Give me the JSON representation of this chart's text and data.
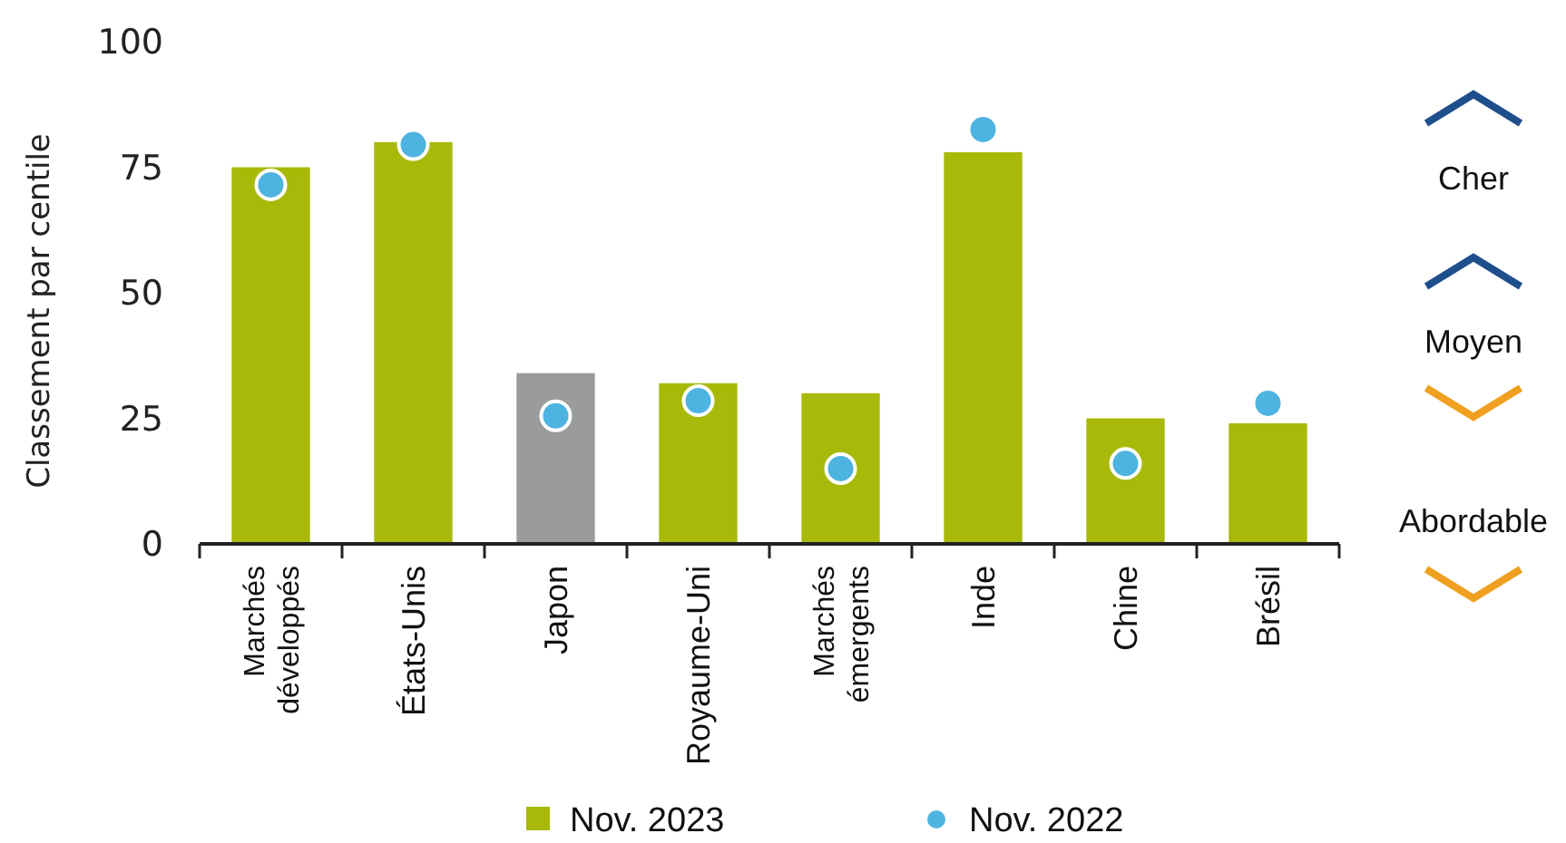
{
  "chart_data": {
    "type": "bar",
    "ylabel": "Classement par centile",
    "categories": [
      "Marchés développés",
      "États-Unis",
      "Japon",
      "Royaume-Uni",
      "Marchés émergents",
      "Inde",
      "Chine",
      "Brésil"
    ],
    "series": [
      {
        "name": "Nov. 2023",
        "color": "#a9b90a",
        "colors": [
          "#a9b90a",
          "#a9b90a",
          "#9a9c9c",
          "#a9b90a",
          "#a9b90a",
          "#a9b90a",
          "#a9b90a",
          "#a9b90a"
        ],
        "values": [
          75,
          80,
          34,
          32,
          30,
          78,
          25,
          24
        ]
      },
      {
        "name": "Nov. 2022",
        "type": "scatter",
        "color": "#4db3e1",
        "marker": "circle",
        "values": [
          71.5,
          79.5,
          25.5,
          28.5,
          15,
          82.5,
          16,
          28
        ]
      }
    ],
    "ylim": [
      0,
      100
    ],
    "yticks": [
      0,
      25,
      50,
      75,
      100
    ],
    "grid": false,
    "legend": "bottom",
    "annotations": [
      "Cher",
      "Moyen",
      "Abordable"
    ]
  }
}
